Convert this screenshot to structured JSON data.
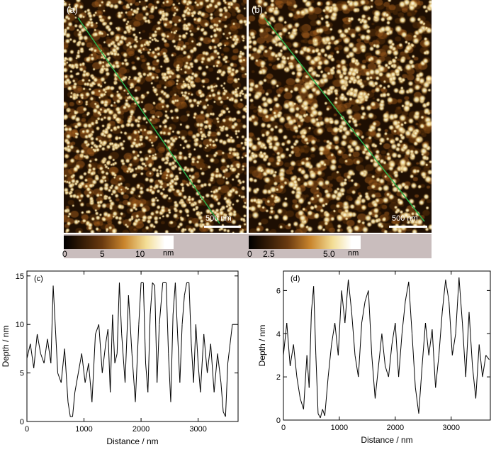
{
  "afm_images": [
    {
      "label": "(a)",
      "scale_bar": "500 nm",
      "colorbar": {
        "ticks": [
          "0",
          "5",
          "10"
        ],
        "unit": "nm",
        "range": [
          0,
          13
        ]
      }
    },
    {
      "label": "(b)",
      "scale_bar": "500 nm",
      "colorbar": {
        "ticks": [
          "0",
          "2.5",
          "5.0"
        ],
        "unit": "nm",
        "range": [
          0,
          6.2
        ]
      }
    }
  ],
  "colors": {
    "afm_dark": "#1e0f03",
    "afm_mid": "#9a5a1c",
    "afm_light": "#f3dd95",
    "afm_white": "#ffffff",
    "profile_line": "#2bb24a",
    "cbar_strip": "#c9bdbd",
    "trace": "#000000"
  },
  "chart_data": [
    {
      "type": "line",
      "panel_label": "(c)",
      "xlabel": "Distance / nm",
      "ylabel": "Depth / nm",
      "xlim": [
        0,
        3700
      ],
      "ylim": [
        0,
        15.5
      ],
      "xticks": [
        0,
        1000,
        2000,
        3000
      ],
      "yticks": [
        0,
        5,
        10,
        15
      ],
      "x": [
        0,
        60,
        120,
        180,
        240,
        300,
        360,
        420,
        460,
        500,
        540,
        600,
        660,
        720,
        760,
        800,
        840,
        900,
        960,
        1020,
        1080,
        1140,
        1200,
        1260,
        1320,
        1380,
        1420,
        1460,
        1500,
        1540,
        1580,
        1620,
        1660,
        1720,
        1780,
        1840,
        1900,
        1960,
        2000,
        2040,
        2080,
        2120,
        2160,
        2200,
        2240,
        2280,
        2320,
        2380,
        2440,
        2480,
        2520,
        2560,
        2600,
        2640,
        2680,
        2720,
        2760,
        2800,
        2840,
        2880,
        2920,
        2960,
        3000,
        3040,
        3100,
        3160,
        3220,
        3280,
        3340,
        3400,
        3440,
        3480,
        3520,
        3560,
        3600,
        3640
      ],
      "y": [
        6.5,
        8,
        5.5,
        9,
        7,
        6,
        8.5,
        6,
        14,
        9.5,
        5,
        4,
        7.5,
        2,
        0.5,
        0.5,
        3,
        5,
        7,
        4,
        6,
        2,
        9,
        10,
        5,
        8,
        9.5,
        3,
        11,
        6,
        7,
        14.3,
        9,
        4,
        13,
        7,
        2,
        10,
        14.3,
        14.3,
        6,
        3,
        11,
        14.3,
        14,
        4,
        10,
        14.3,
        14.3,
        7,
        2,
        11,
        14.3,
        9,
        4,
        10,
        13,
        14.3,
        14.3,
        8,
        4,
        10,
        6,
        3,
        9,
        5,
        8,
        3,
        7,
        4,
        1,
        0.5,
        6,
        8,
        10,
        10
      ]
    },
    {
      "type": "line",
      "panel_label": "(d)",
      "xlabel": "Distance / nm",
      "ylabel": "Depth / nm",
      "xlim": [
        0,
        3700
      ],
      "ylim": [
        0,
        6.9
      ],
      "xticks": [
        0,
        1000,
        2000,
        3000
      ],
      "yticks": [
        0,
        2,
        4,
        6
      ],
      "x": [
        0,
        60,
        120,
        180,
        240,
        300,
        360,
        420,
        460,
        500,
        540,
        580,
        620,
        660,
        700,
        740,
        800,
        860,
        920,
        980,
        1040,
        1100,
        1160,
        1220,
        1280,
        1340,
        1400,
        1460,
        1520,
        1580,
        1640,
        1700,
        1760,
        1820,
        1880,
        1940,
        2000,
        2060,
        2120,
        2180,
        2240,
        2300,
        2360,
        2420,
        2480,
        2540,
        2600,
        2660,
        2720,
        2780,
        2840,
        2900,
        2960,
        3020,
        3080,
        3140,
        3200,
        3260,
        3320,
        3380,
        3440,
        3500,
        3560,
        3620,
        3680
      ],
      "y": [
        3,
        4.5,
        2.5,
        3.5,
        2,
        1,
        0.5,
        3,
        1.5,
        5,
        6.2,
        3,
        0.3,
        0.1,
        0.5,
        0.2,
        2,
        3.5,
        4.5,
        3,
        6,
        4.5,
        6.5,
        5,
        3,
        2,
        4.5,
        5.5,
        6,
        3,
        1,
        2.5,
        4,
        2.5,
        2,
        3.5,
        4.5,
        2,
        4,
        5.5,
        6.4,
        4,
        1.5,
        0.3,
        2.5,
        4.5,
        3,
        4.2,
        1.5,
        3,
        5,
        6.5,
        5.5,
        3,
        4,
        6.6,
        4.5,
        2,
        5,
        2.5,
        1,
        3.5,
        2,
        3,
        2.8
      ]
    }
  ]
}
